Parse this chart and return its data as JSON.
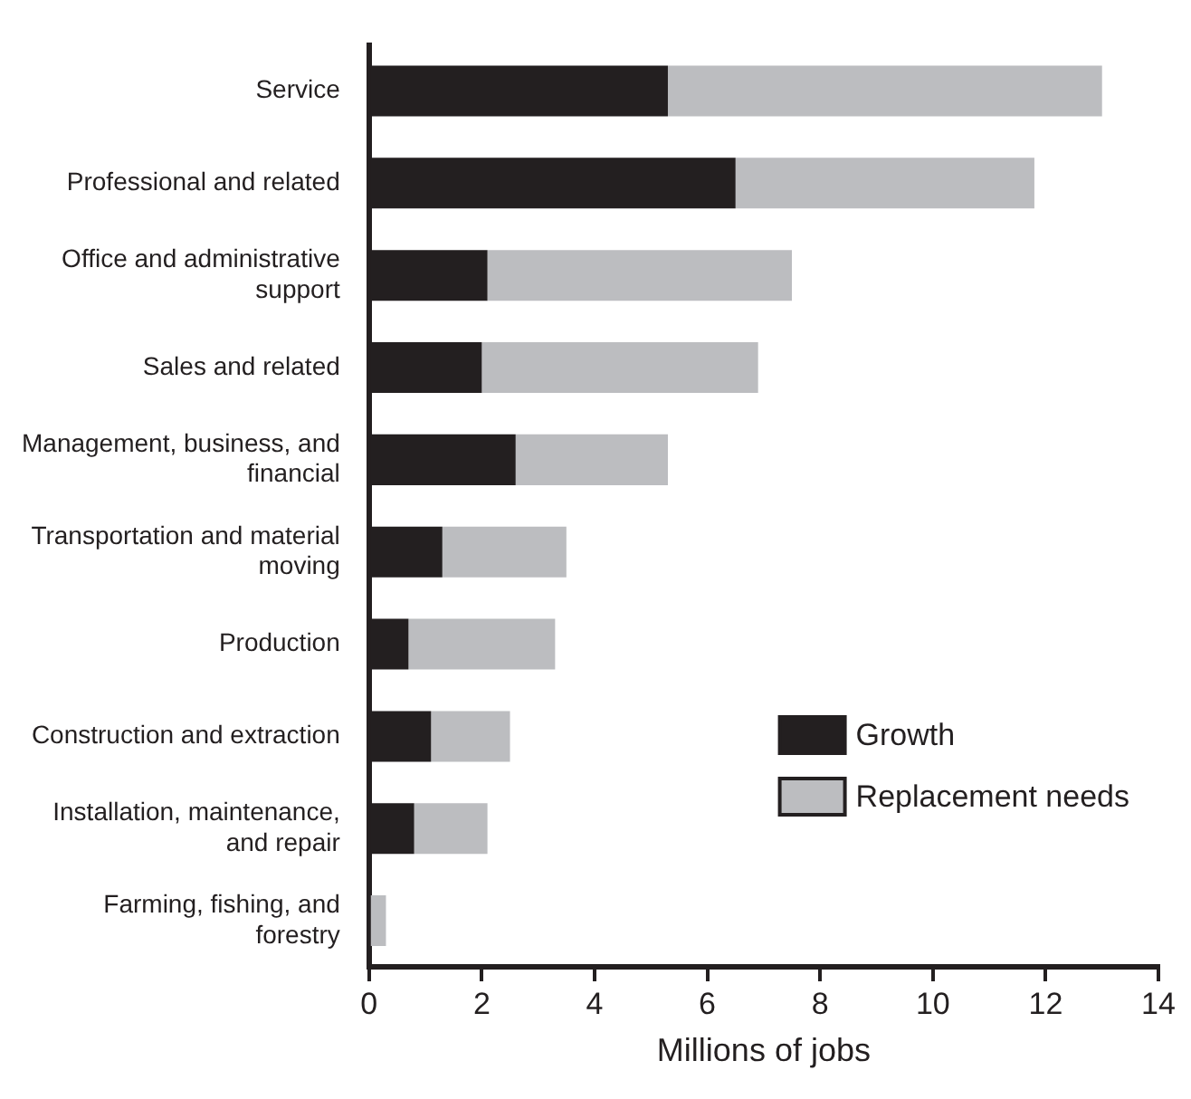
{
  "chart_data": {
    "type": "bar",
    "orientation": "horizontal",
    "stacked": true,
    "categories": [
      "Service",
      "Professional and related",
      "Office and administrative support",
      "Sales and related",
      "Management, business, and financial",
      "Transportation and material moving",
      "Production",
      "Construction and extraction",
      "Installation, maintenance, and repair",
      "Farming, fishing, and forestry"
    ],
    "series": [
      {
        "name": "Growth",
        "color": "#231f20",
        "values": [
          5.3,
          6.5,
          2.1,
          2.0,
          2.6,
          1.3,
          0.7,
          1.1,
          0.8,
          0.0
        ]
      },
      {
        "name": "Replacement needs",
        "color": "#bcbdc0",
        "values": [
          7.7,
          5.3,
          5.4,
          4.9,
          2.7,
          2.2,
          2.6,
          1.4,
          1.3,
          0.3
        ]
      }
    ],
    "xlabel": "Millions of jobs",
    "xlim": [
      0,
      14
    ],
    "xticks": [
      0,
      2,
      4,
      6,
      8,
      10,
      12,
      14
    ],
    "grid": false,
    "legend": "bottom right"
  }
}
